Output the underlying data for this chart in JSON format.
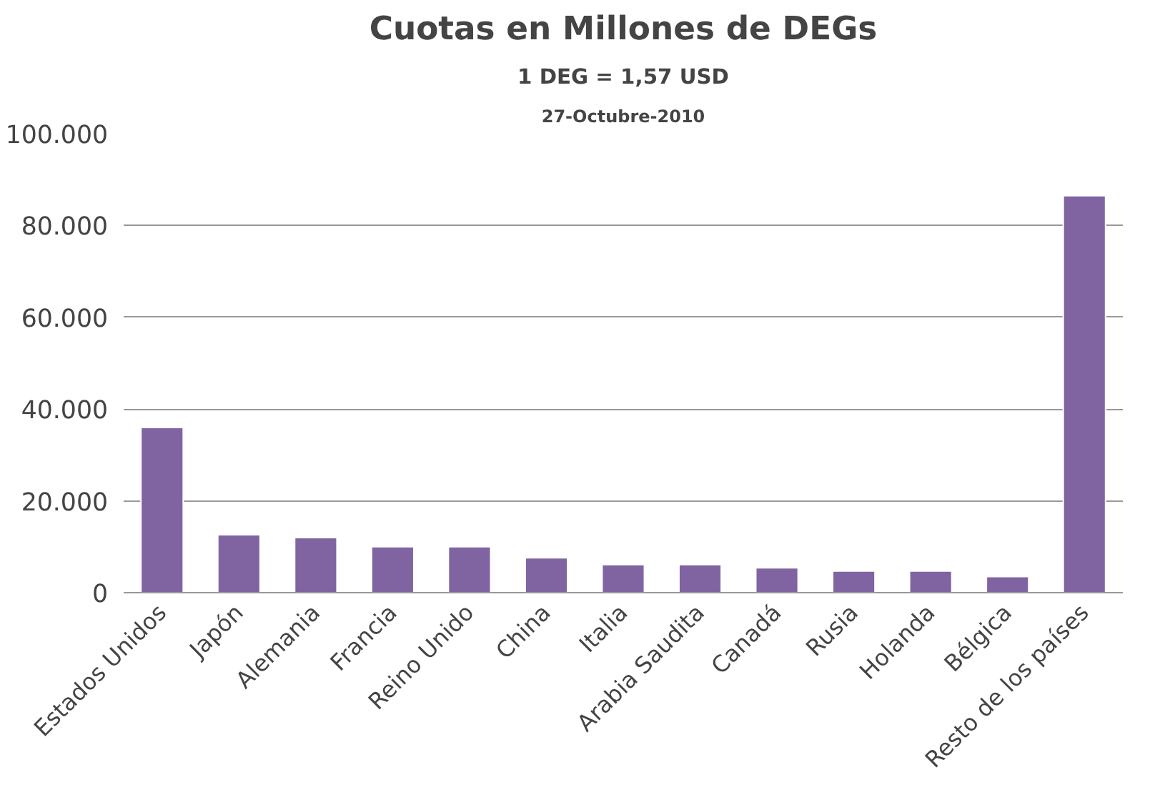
{
  "chart_data": {
    "type": "bar",
    "title": "Cuotas en Millones de DEGs",
    "subtitle": "1 DEG = 1,57 USD",
    "annotations": [
      "27-Octubre-2010"
    ],
    "categories": [
      "Estados Unidos",
      "Japón",
      "Alemania",
      "Francia",
      "Reino Unido",
      "China",
      "Italia",
      "Arabia Saudita",
      "Canadá",
      "Rusia",
      "Holanda",
      "Bélgica",
      "Resto de los países"
    ],
    "values": [
      36000,
      12600,
      12000,
      10000,
      10000,
      7600,
      6100,
      6100,
      5400,
      4700,
      4700,
      3500,
      86500
    ],
    "color": "#8064a2",
    "ylim": [
      0,
      100000
    ],
    "yticks": [
      {
        "value": 0,
        "label": "0"
      },
      {
        "value": 20000,
        "label": "20.000"
      },
      {
        "value": 40000,
        "label": "40.000"
      },
      {
        "value": 60000,
        "label": "60.000"
      },
      {
        "value": 80000,
        "label": "80.000"
      },
      {
        "value": 100000,
        "label": "100.000"
      }
    ],
    "grid": "y"
  }
}
